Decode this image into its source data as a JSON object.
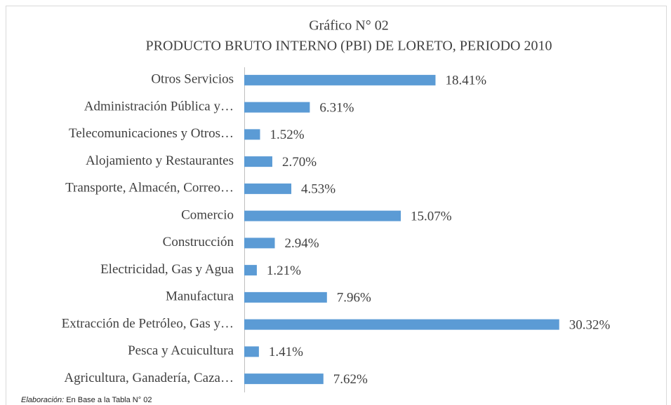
{
  "chart_data": {
    "type": "bar",
    "orientation": "horizontal",
    "title": "Gráfico N° 02",
    "subtitle": "PRODUCTO BRUTO INTERNO (PBI) DE LORETO, PERIODO 2010",
    "categories": [
      "Otros Servicios",
      "Administración Pública y…",
      "Telecomunicaciones y Otros…",
      "Alojamiento y Restaurantes",
      "Transporte, Almacén, Correo…",
      "Comercio",
      "Construcción",
      "Electricidad, Gas y Agua",
      "Manufactura",
      "Extracción de Petróleo, Gas y…",
      "Pesca y Acuicultura",
      "Agricultura, Ganadería, Caza…"
    ],
    "values": [
      18.41,
      6.31,
      1.52,
      2.7,
      4.53,
      15.07,
      2.94,
      1.21,
      7.96,
      30.32,
      1.41,
      7.62
    ],
    "value_labels": [
      "18.41%",
      "6.31%",
      "1.52%",
      "2.70%",
      "4.53%",
      "15.07%",
      "2.94%",
      "1.21%",
      "7.96%",
      "30.32%",
      "1.41%",
      "7.62%"
    ],
    "color": "#5b9bd5",
    "xlim": [
      0,
      35
    ]
  },
  "note_label": "Elaboración:",
  "note": "En Base a la Tabla N° 02"
}
